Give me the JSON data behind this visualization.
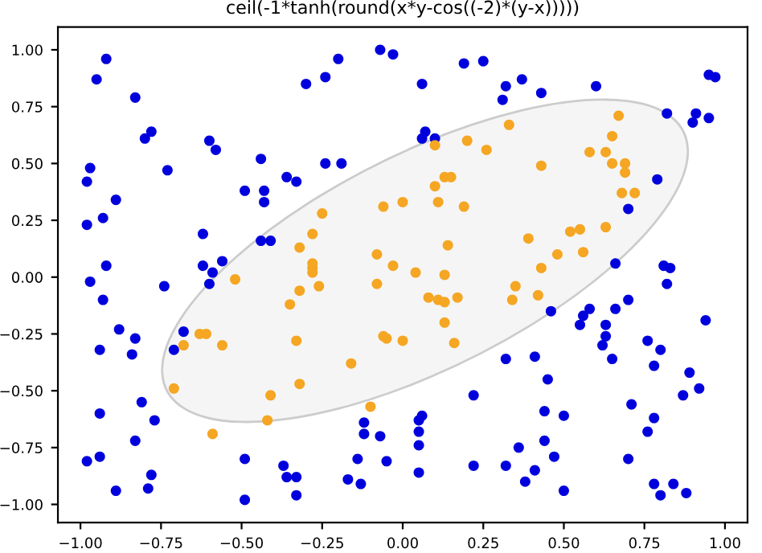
{
  "chart_data": {
    "type": "scatter",
    "title": "ceil(-1*tanh(round(x*y-cos((-2)*(y-x)))))",
    "xlim": [
      -1.07,
      1.07
    ],
    "ylim": [
      -1.08,
      1.1
    ],
    "xticks": [
      {
        "value": -1,
        "label": "−1.00"
      },
      {
        "value": -0.75,
        "label": "−0.75"
      },
      {
        "value": -0.5,
        "label": "−0.50"
      },
      {
        "value": -0.25,
        "label": "−0.25"
      },
      {
        "value": 0,
        "label": "0.00"
      },
      {
        "value": 0.25,
        "label": "0.25"
      },
      {
        "value": 0.5,
        "label": "0.50"
      },
      {
        "value": 0.75,
        "label": "0.75"
      },
      {
        "value": 1,
        "label": "1.00"
      }
    ],
    "yticks": [
      {
        "value": -1,
        "label": "−1.00"
      },
      {
        "value": -0.75,
        "label": "−0.75"
      },
      {
        "value": -0.5,
        "label": "−0.50"
      },
      {
        "value": -0.25,
        "label": "−0.25"
      },
      {
        "value": 0,
        "label": "0.00"
      },
      {
        "value": 0.25,
        "label": "0.25"
      },
      {
        "value": 0.5,
        "label": "0.50"
      },
      {
        "value": 0.75,
        "label": "0.75"
      },
      {
        "value": 1,
        "label": "1.00"
      }
    ],
    "marker": "circle",
    "grid": false,
    "legend": false,
    "series": [
      {
        "color": "#0000dd",
        "x": [
          -0.92,
          -0.95,
          -0.83,
          -0.8,
          -0.78,
          -0.6,
          -0.58,
          -0.97,
          -0.98,
          -0.73,
          -0.44,
          -0.24,
          -0.19,
          -0.36,
          -0.33,
          -0.49,
          -0.43,
          -0.43,
          -0.89,
          -0.93,
          -0.98,
          -0.62,
          -0.44,
          -0.41,
          -0.3,
          -0.24,
          -0.2,
          -0.07,
          -0.03,
          0.19,
          0.25,
          0.06,
          0.32,
          0.37,
          0.31,
          0.43,
          0.6,
          0.95,
          0.97,
          0.82,
          0.91,
          0.9,
          0.95,
          0.07,
          0.06,
          0.1,
          0.79,
          0.7,
          -0.92,
          -0.97,
          -0.93,
          -0.74,
          -0.62,
          -0.59,
          -0.56,
          -0.6,
          -0.88,
          -0.83,
          -0.94,
          -0.84,
          -0.68,
          -0.71,
          -0.81,
          -0.94,
          -0.77,
          -0.83,
          -0.98,
          -0.94,
          -0.78,
          -0.79,
          -0.89,
          -0.49,
          -0.37,
          -0.36,
          -0.33,
          -0.33,
          -0.49,
          -0.12,
          -0.12,
          -0.14,
          -0.17,
          -0.13,
          0.66,
          0.81,
          0.83,
          0.82,
          0.7,
          0.66,
          0.58,
          0.56,
          0.55,
          0.46,
          0.63,
          0.63,
          0.62,
          0.65,
          0.94,
          0.76,
          0.8,
          0.78,
          0.89,
          0.92,
          0.87,
          0.41,
          0.32,
          0.45,
          0.22,
          0.71,
          0.44,
          0.5,
          0.78,
          0.76,
          0.06,
          0.05,
          0.05,
          0.05,
          0.44,
          0.36,
          0.47,
          -0.07,
          -0.05,
          0.22,
          0.32,
          0.05,
          0.41,
          0.38,
          0.5,
          0.7,
          0.78,
          0.84,
          0.8,
          0.88
        ],
        "values": [
          0.96,
          0.87,
          0.79,
          0.61,
          0.64,
          0.6,
          0.56,
          0.48,
          0.42,
          0.47,
          0.52,
          0.5,
          0.5,
          0.44,
          0.42,
          0.38,
          0.38,
          0.33,
          0.34,
          0.26,
          0.23,
          0.19,
          0.16,
          0.16,
          0.85,
          0.88,
          0.96,
          1.0,
          0.98,
          0.94,
          0.95,
          0.85,
          0.84,
          0.87,
          0.78,
          0.81,
          0.84,
          0.89,
          0.88,
          0.72,
          0.72,
          0.68,
          0.7,
          0.64,
          0.61,
          0.61,
          0.43,
          0.3,
          0.05,
          -0.02,
          -0.1,
          -0.04,
          0.05,
          0.02,
          0.07,
          -0.03,
          -0.23,
          -0.27,
          -0.32,
          -0.34,
          -0.24,
          -0.32,
          -0.55,
          -0.6,
          -0.63,
          -0.72,
          -0.81,
          -0.79,
          -0.87,
          -0.93,
          -0.94,
          -0.8,
          -0.83,
          -0.88,
          -0.88,
          -0.96,
          -0.98,
          -0.64,
          -0.69,
          -0.8,
          -0.89,
          -0.91,
          0.06,
          0.05,
          0.04,
          -0.03,
          -0.1,
          -0.14,
          -0.14,
          -0.17,
          -0.21,
          -0.15,
          -0.21,
          -0.26,
          -0.3,
          -0.36,
          -0.19,
          -0.28,
          -0.32,
          -0.39,
          -0.42,
          -0.49,
          -0.52,
          -0.35,
          -0.36,
          -0.45,
          -0.52,
          -0.56,
          -0.59,
          -0.61,
          -0.62,
          -0.68,
          -0.61,
          -0.63,
          -0.68,
          -0.74,
          -0.72,
          -0.75,
          -0.79,
          -0.7,
          -0.81,
          -0.83,
          -0.83,
          -0.86,
          -0.85,
          -0.9,
          -0.94,
          -0.8,
          -0.91,
          -0.91,
          -0.96,
          -0.95
        ]
      },
      {
        "color": "#f5a623",
        "x": [
          -0.25,
          -0.28,
          -0.32,
          0.67,
          0.33,
          0.1,
          0.2,
          0.26,
          0.65,
          0.58,
          0.63,
          0.65,
          0.69,
          0.69,
          0.43,
          0.13,
          0.15,
          0.1,
          0.68,
          0.72,
          -0.06,
          0.0,
          0.11,
          0.19,
          0.52,
          0.55,
          0.63,
          0.39,
          0.14,
          -0.08,
          0.48,
          0.56,
          -0.28,
          -0.28,
          -0.28,
          -0.52,
          -0.32,
          -0.26,
          -0.35,
          -0.63,
          -0.61,
          -0.68,
          -0.56,
          -0.33,
          -0.16,
          -0.71,
          -0.32,
          -0.41,
          -0.42,
          -0.59,
          -0.03,
          0.04,
          0.13,
          0.43,
          -0.08,
          0.35,
          0.08,
          0.11,
          0.13,
          0.17,
          0.34,
          0.42,
          0.13,
          -0.06,
          -0.05,
          0.0,
          0.16,
          -0.1
        ],
        "values": [
          0.28,
          0.19,
          0.13,
          0.71,
          0.67,
          0.58,
          0.6,
          0.56,
          0.62,
          0.55,
          0.55,
          0.5,
          0.5,
          0.46,
          0.49,
          0.44,
          0.44,
          0.4,
          0.37,
          0.37,
          0.31,
          0.33,
          0.33,
          0.31,
          0.2,
          0.21,
          0.22,
          0.17,
          0.14,
          0.1,
          0.1,
          0.11,
          0.06,
          0.04,
          0.02,
          -0.01,
          -0.06,
          -0.04,
          -0.12,
          -0.25,
          -0.25,
          -0.3,
          -0.3,
          -0.28,
          -0.38,
          -0.49,
          -0.47,
          -0.52,
          -0.63,
          -0.69,
          0.05,
          0.02,
          0.01,
          0.04,
          -0.03,
          -0.04,
          -0.09,
          -0.1,
          -0.11,
          -0.09,
          -0.1,
          -0.08,
          -0.2,
          -0.26,
          -0.27,
          -0.28,
          -0.29,
          -0.57
        ]
      }
    ]
  }
}
